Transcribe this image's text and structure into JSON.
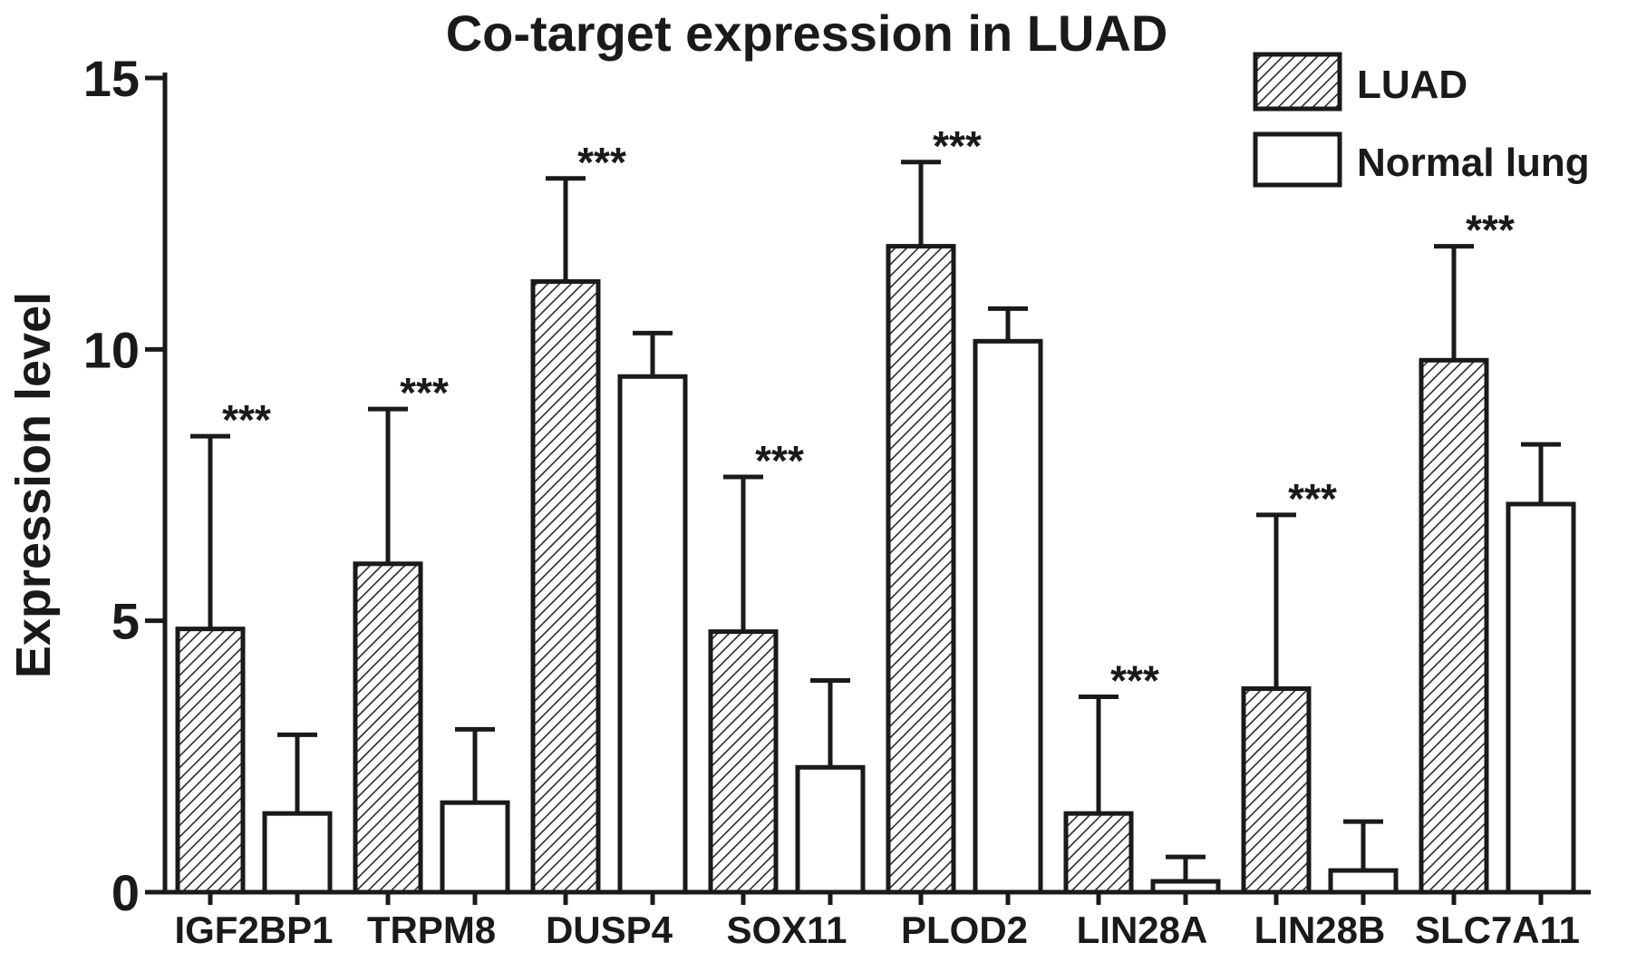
{
  "chart_data": {
    "type": "bar",
    "title": "Co-target expression in LUAD",
    "xlabel": "",
    "ylabel": "Expression level",
    "ylim": [
      0,
      15
    ],
    "yticks": [
      "0",
      "5",
      "10",
      "15"
    ],
    "grid": false,
    "legend_position": "top-right",
    "categories": [
      "IGF2BP1",
      "TRPM8",
      "DUSP4",
      "SOX11",
      "PLOD2",
      "LIN28A",
      "LIN28B",
      "SLC7A11"
    ],
    "series": [
      {
        "name": "LUAD",
        "pattern": "diagonal-hatch",
        "values": [
          4.85,
          6.05,
          11.25,
          4.8,
          11.9,
          1.45,
          3.75,
          9.8
        ],
        "errors": [
          3.55,
          2.85,
          1.9,
          2.85,
          1.55,
          2.15,
          3.2,
          2.1
        ]
      },
      {
        "name": "Normal lung",
        "pattern": "none",
        "values": [
          1.45,
          1.65,
          9.5,
          2.3,
          10.15,
          0.2,
          0.4,
          7.15
        ],
        "errors": [
          1.45,
          1.35,
          0.8,
          1.6,
          0.6,
          0.45,
          0.9,
          1.1
        ]
      }
    ],
    "annotations": [
      "***",
      "***",
      "***",
      "***",
      "***",
      "***",
      "***",
      "***"
    ],
    "colors": {
      "stroke": "#1a1a1a",
      "hatch_fill": "#c8c8c8",
      "open_fill": "#ffffff"
    }
  }
}
